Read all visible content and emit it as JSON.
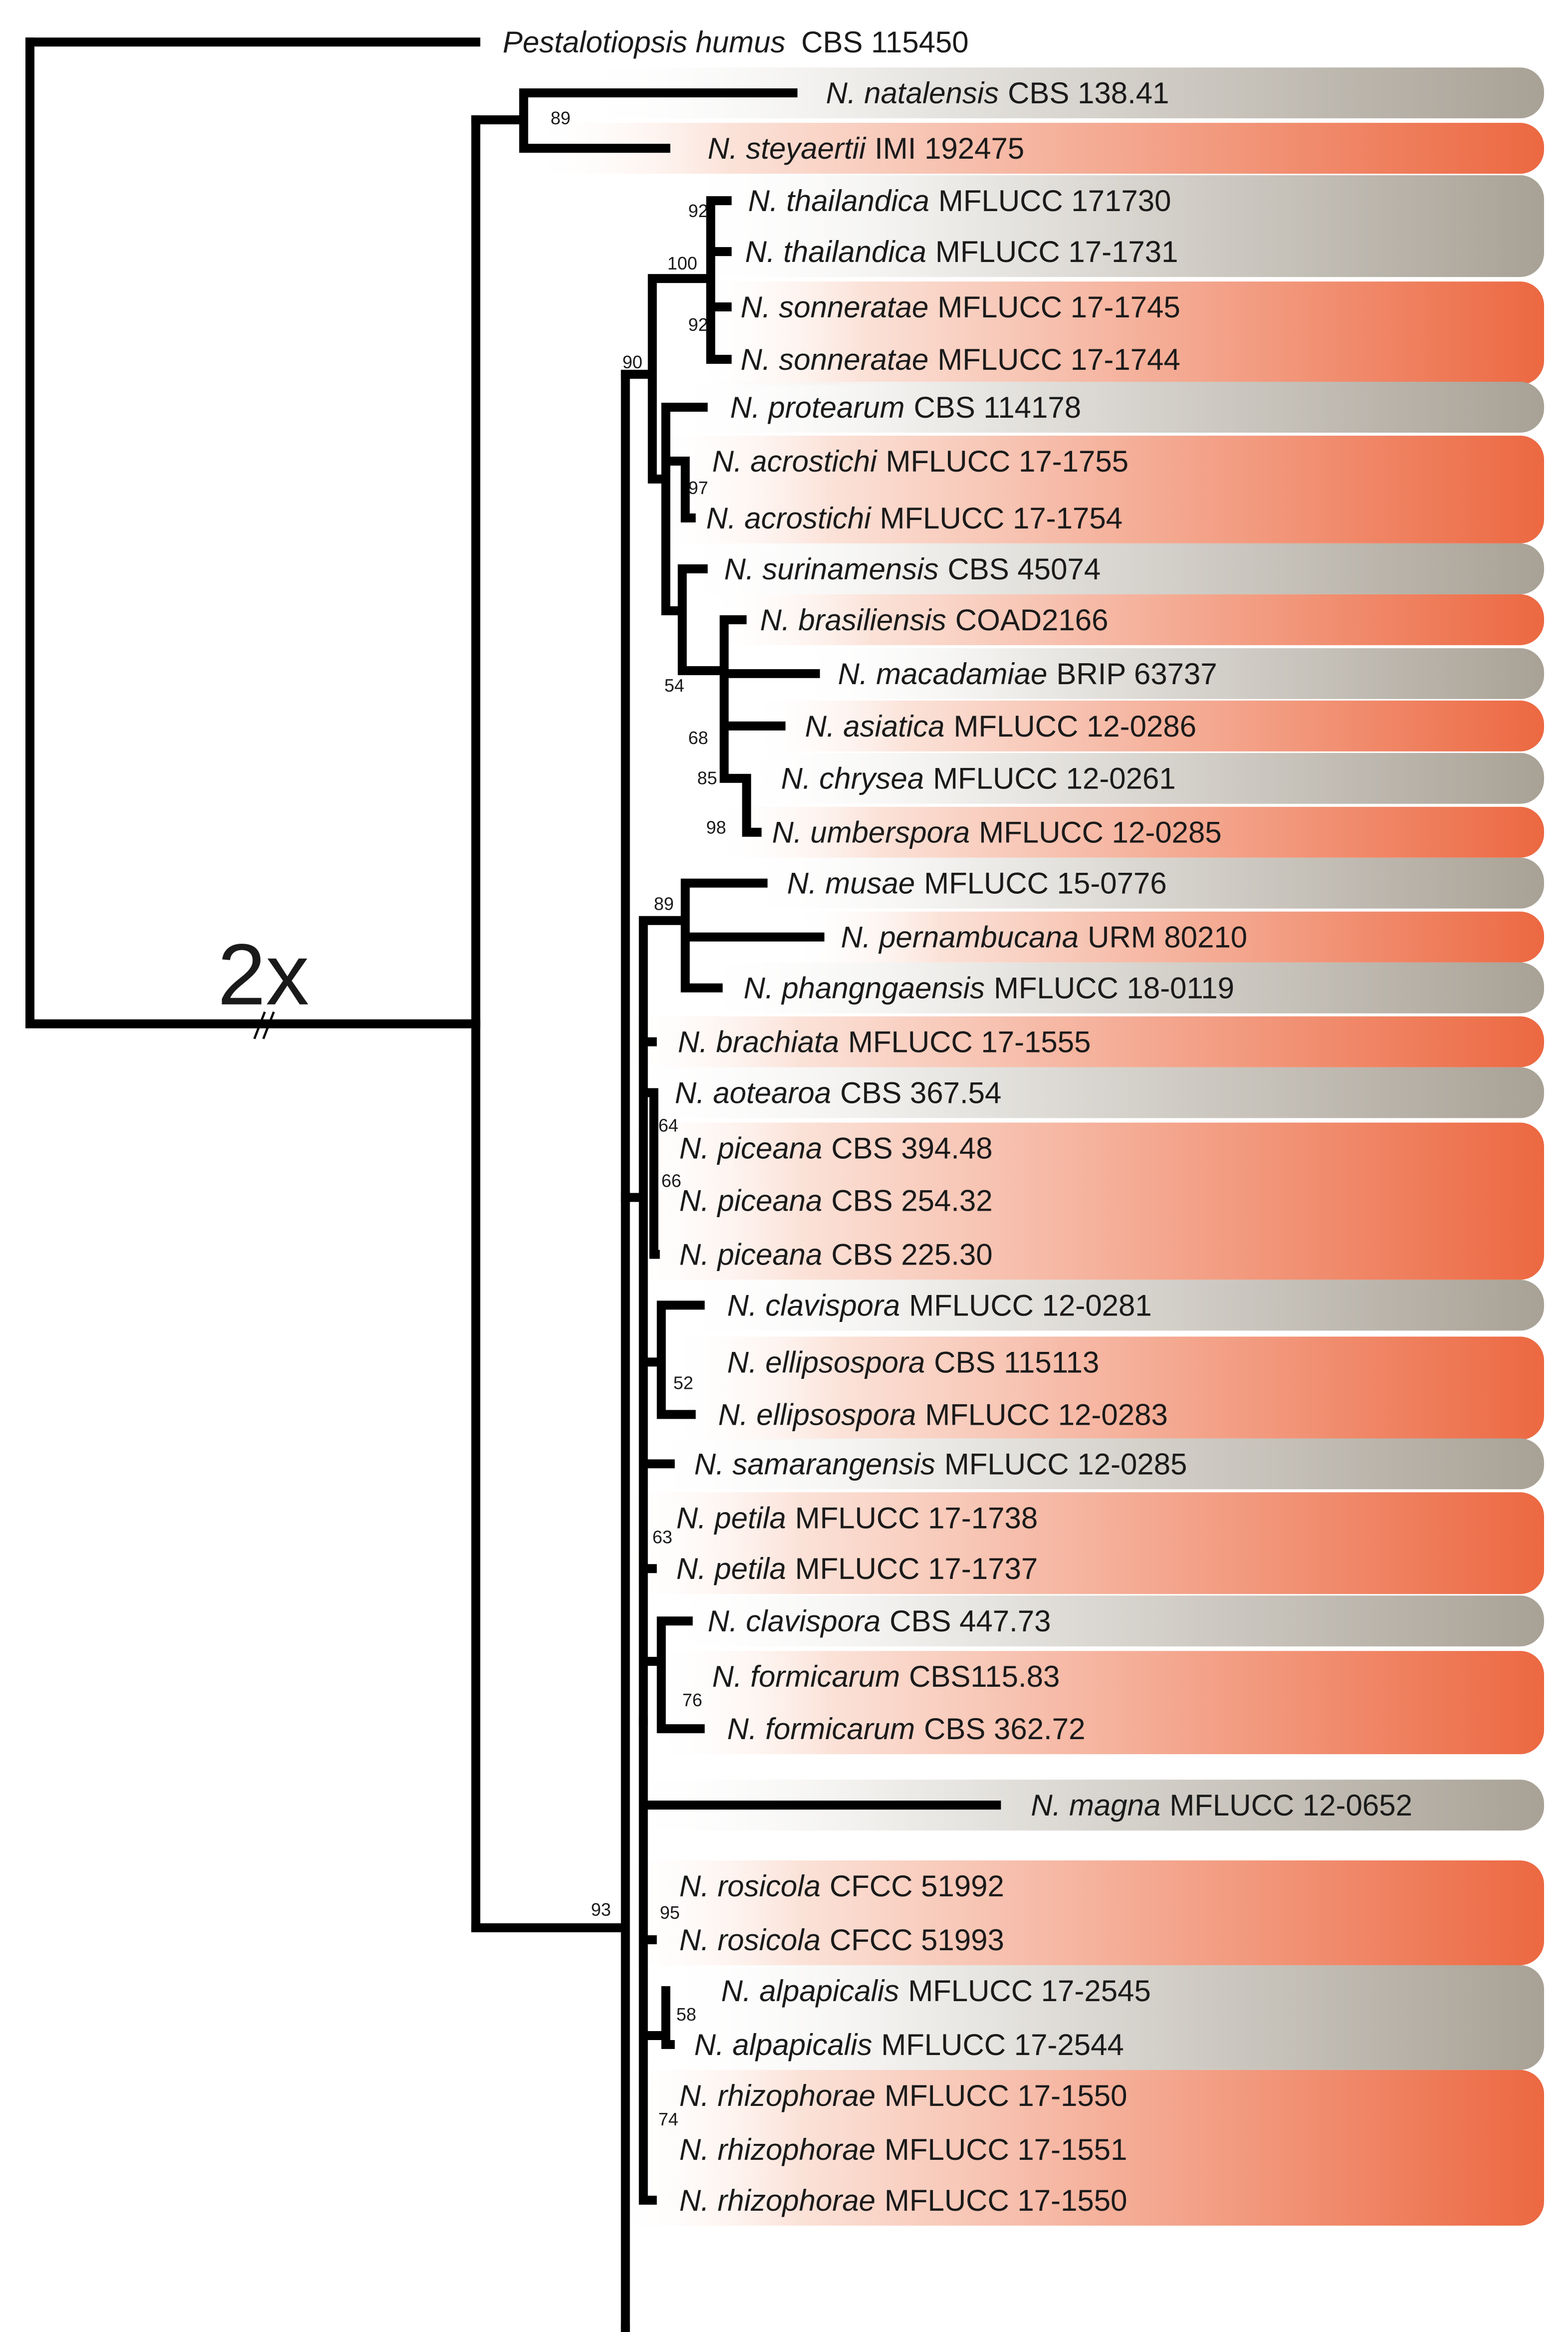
{
  "colors": {
    "grey": "#a8a195",
    "orange": "#ec6841",
    "line": "#000000"
  },
  "scale_label": "2x",
  "outgroup": {
    "species": "Pestalotiopsis humus",
    "strain": "CBS 115450"
  },
  "taxa": [
    {
      "species": "N. natalensis",
      "strain": "CBS 138.41"
    },
    {
      "species": "N. steyaertii",
      "strain": "IMI 192475"
    },
    {
      "species": "N. thailandica",
      "strain": "MFLUCC 171730"
    },
    {
      "species": "N. thailandica",
      "strain": "MFLUCC 17-1731"
    },
    {
      "species": "N. sonneratae",
      "strain": "MFLUCC 17-1745"
    },
    {
      "species": "N. sonneratae",
      "strain": "MFLUCC 17-1744"
    },
    {
      "species": "N. protearum",
      "strain": "CBS 114178"
    },
    {
      "species": "N. acrostichi",
      "strain": "MFLUCC 17-1755"
    },
    {
      "species": "N. acrostichi",
      "strain": "MFLUCC 17-1754"
    },
    {
      "species": "N. surinamensis",
      "strain": "CBS 45074"
    },
    {
      "species": "N. brasiliensis",
      "strain": "COAD2166"
    },
    {
      "species": "N. macadamiae",
      "strain": "BRIP 63737"
    },
    {
      "species": "N. asiatica",
      "strain": "MFLUCC 12-0286"
    },
    {
      "species": "N. chrysea",
      "strain": "MFLUCC 12-0261"
    },
    {
      "species": "N. umberspora",
      "strain": "MFLUCC 12-0285"
    },
    {
      "species": "N. musae",
      "strain": "MFLUCC 15-0776"
    },
    {
      "species": "N. pernambucana",
      "strain": "URM 80210"
    },
    {
      "species": "N. phangngaensis",
      "strain": "MFLUCC 18-0119"
    },
    {
      "species": "N. brachiata",
      "strain": "MFLUCC 17-1555"
    },
    {
      "species": "N. aotearoa",
      "strain": "CBS 367.54"
    },
    {
      "species": "N. piceana",
      "strain": "CBS 394.48"
    },
    {
      "species": "N. piceana",
      "strain": "CBS 254.32"
    },
    {
      "species": "N. piceana",
      "strain": "CBS 225.30"
    },
    {
      "species": "N. clavispora",
      "strain": "MFLUCC 12-0281"
    },
    {
      "species": "N. ellipsospora",
      "strain": "CBS 115113"
    },
    {
      "species": "N. ellipsospora",
      "strain": "MFLUCC 12-0283"
    },
    {
      "species": "N. samarangensis",
      "strain": "MFLUCC 12-0285"
    },
    {
      "species": "N. petila",
      "strain": "MFLUCC 17-1738"
    },
    {
      "species": "N. petila",
      "strain": "MFLUCC 17-1737"
    },
    {
      "species": "N. clavispora",
      "strain": "CBS 447.73"
    },
    {
      "species": "N. formicarum",
      "strain": "CBS115.83"
    },
    {
      "species": "N. formicarum",
      "strain": "CBS 362.72"
    },
    {
      "species": "N. magna",
      "strain": "MFLUCC 12-0652"
    },
    {
      "species": "N. rosicola",
      "strain": "CFCC 51992"
    },
    {
      "species": "N. rosicola",
      "strain": "CFCC 51993"
    },
    {
      "species": "N. alpapicalis",
      "strain": "MFLUCC 17-2545"
    },
    {
      "species": "N. alpapicalis",
      "strain": "MFLUCC 17-2544"
    },
    {
      "species": "N. rhizophorae",
      "strain": "MFLUCC 17-1550"
    },
    {
      "species": "N. rhizophorae",
      "strain": "MFLUCC 17-1551"
    },
    {
      "species": "N. rhizophorae",
      "strain": "MFLUCC 17-1550"
    }
  ],
  "clade_bands": [
    {
      "color": "grey",
      "members": 1
    },
    {
      "color": "orange",
      "members": 1
    },
    {
      "color": "grey",
      "members": 2
    },
    {
      "color": "orange",
      "members": 2
    },
    {
      "color": "grey",
      "members": 1
    },
    {
      "color": "orange",
      "members": 2
    },
    {
      "color": "grey",
      "members": 1
    },
    {
      "color": "orange",
      "members": 1
    },
    {
      "color": "grey",
      "members": 1
    },
    {
      "color": "orange",
      "members": 1
    },
    {
      "color": "grey",
      "members": 1
    },
    {
      "color": "orange",
      "members": 1
    },
    {
      "color": "grey",
      "members": 1
    },
    {
      "color": "orange",
      "members": 1
    },
    {
      "color": "grey",
      "members": 1
    },
    {
      "color": "orange",
      "members": 1
    },
    {
      "color": "grey",
      "members": 1
    },
    {
      "color": "orange",
      "members": 3
    },
    {
      "color": "grey",
      "members": 1
    },
    {
      "color": "orange",
      "members": 2
    },
    {
      "color": "grey",
      "members": 1
    },
    {
      "color": "orange",
      "members": 2
    },
    {
      "color": "grey",
      "members": 1
    },
    {
      "color": "orange",
      "members": 2
    },
    {
      "color": "grey",
      "members": 1
    },
    {
      "color": "orange",
      "members": 2
    },
    {
      "color": "grey",
      "members": 2
    },
    {
      "color": "orange",
      "members": 3
    }
  ],
  "support_values": [
    "89",
    "92",
    "100",
    "92",
    "90",
    "97",
    "54",
    "68",
    "85",
    "98",
    "89",
    "64",
    "66",
    "52",
    "63",
    "76",
    "95",
    "58",
    "74",
    "93"
  ]
}
